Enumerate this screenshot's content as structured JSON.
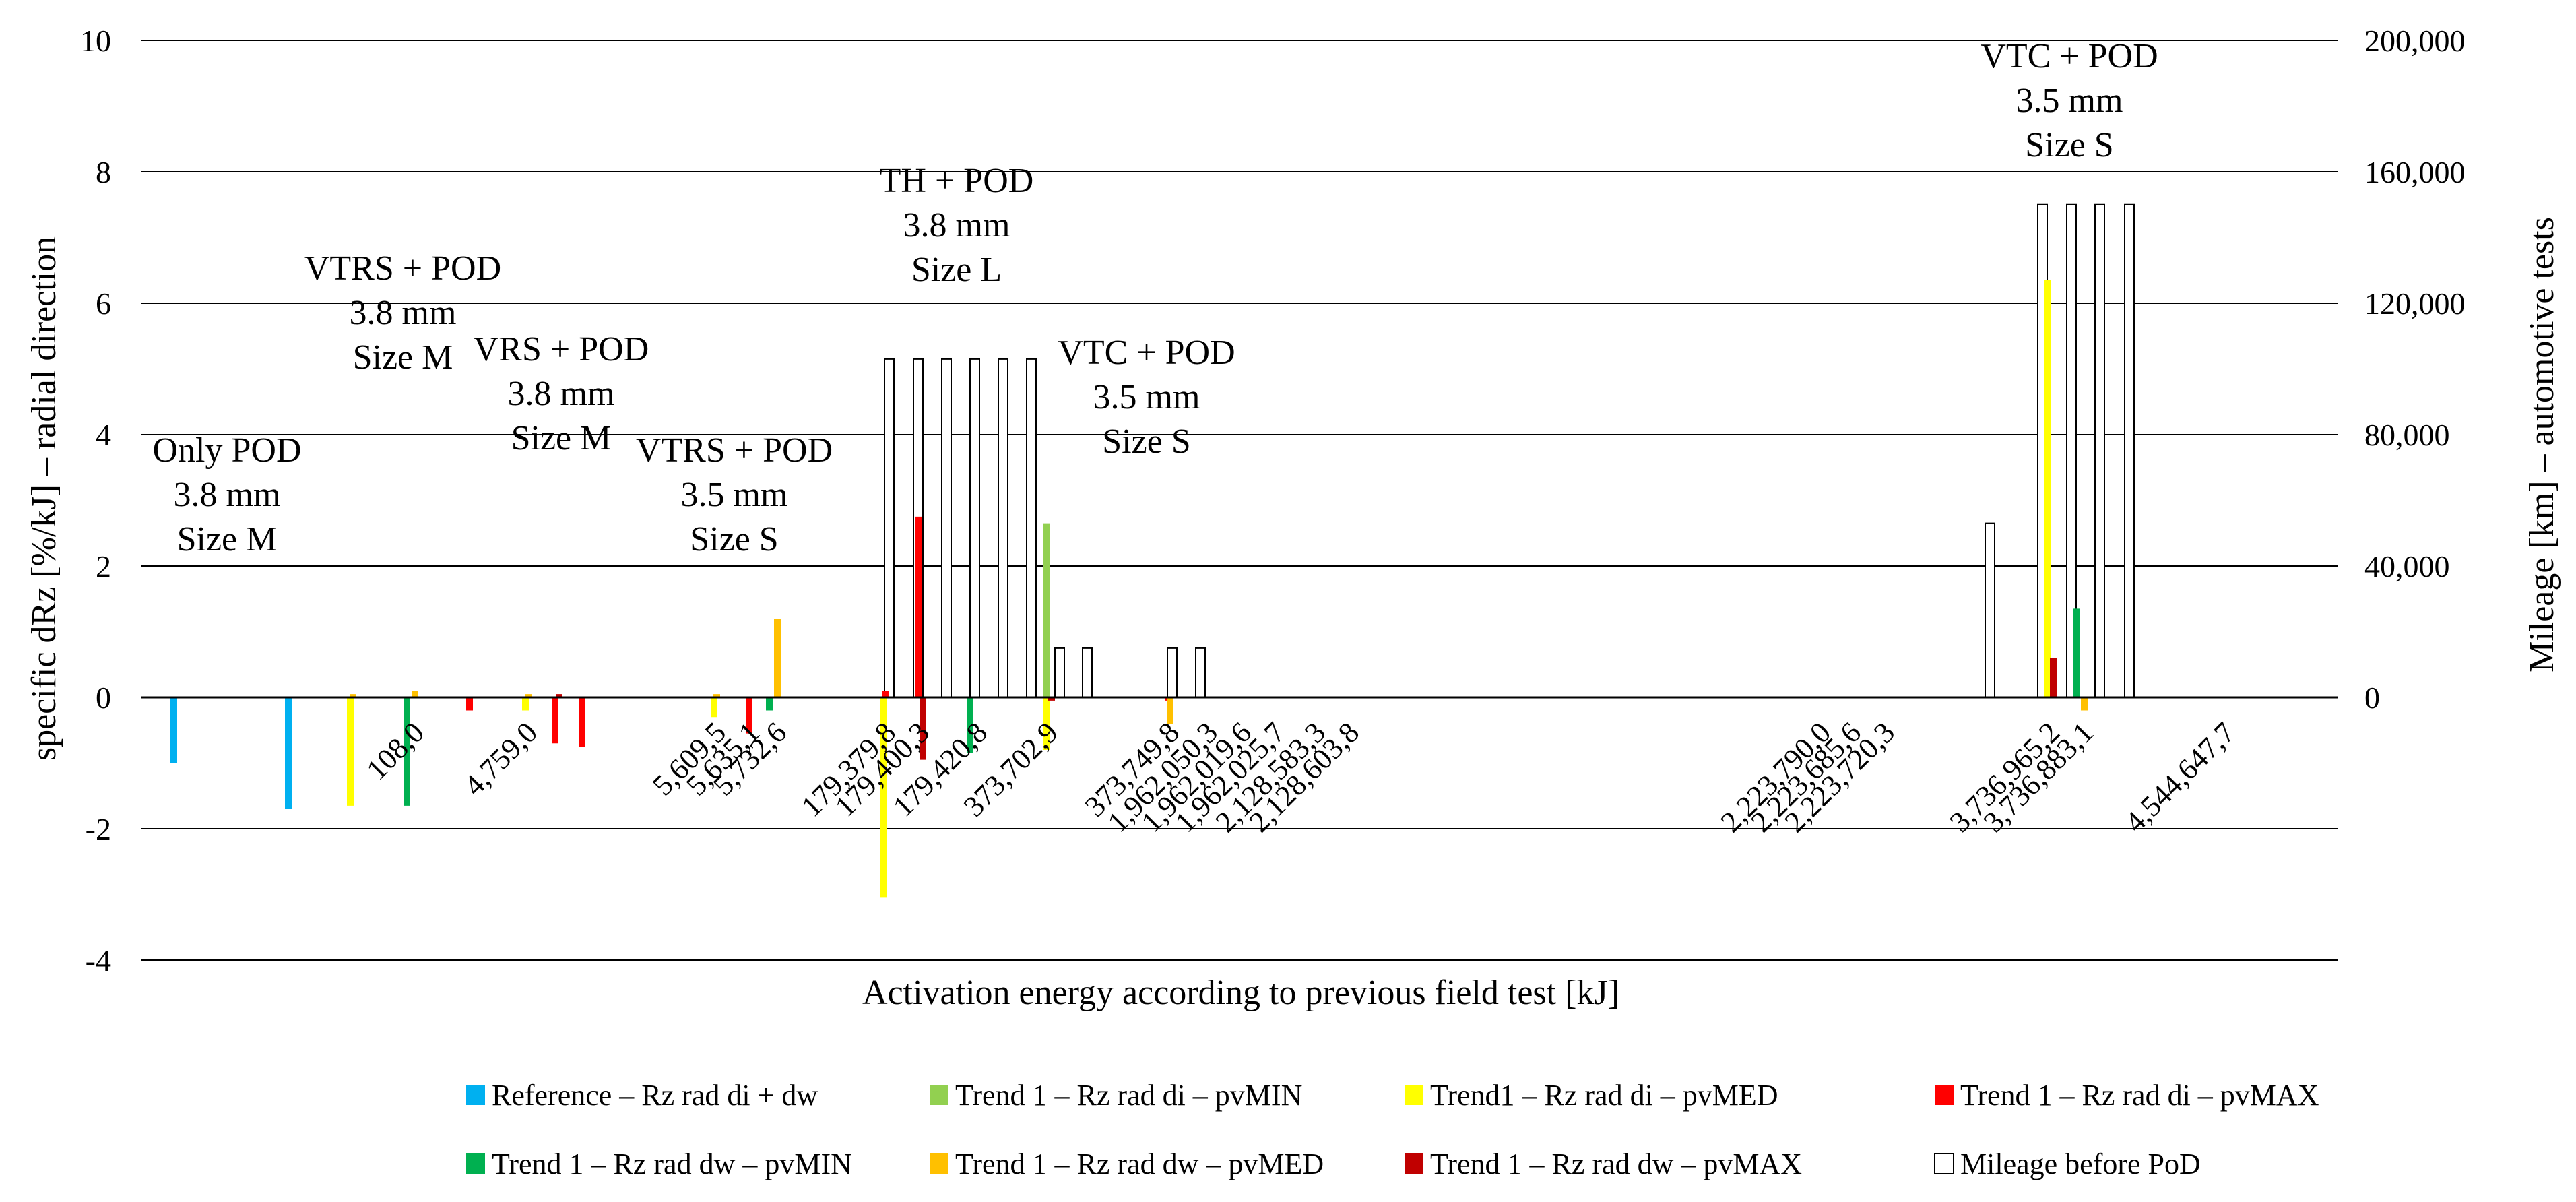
{
  "chart_data": {
    "type": "bar",
    "title": "",
    "xlabel": "Activation energy according to previous field test [kJ]",
    "ylabel": "specific dRz [%/kJ] – radial direction",
    "y2label": "Mileage [km] – automotive tests",
    "ylim": [
      -4,
      10
    ],
    "y2lim": [
      -80000,
      200000
    ],
    "yticks": [
      "-4",
      "-2",
      "0",
      "2",
      "4",
      "6",
      "8",
      "10"
    ],
    "y2ticks": [
      "0",
      "40,000",
      "80,000",
      "120,000",
      "160,000",
      "200,000"
    ],
    "grid": true,
    "legend_position": "bottom",
    "categories": [
      "",
      "",
      "",
      "108,0",
      "",
      "4,759,0",
      "",
      "",
      "5,609,5",
      "5,635,1",
      "5,732,6",
      "179,379,8",
      "179,400,3",
      "179,420,8",
      "373,702,9",
      "373,749,8",
      "1,962,050,3",
      "1,962,019,6",
      "1,962,025,7",
      "2,128,583,3",
      "2,128,603,8",
      "",
      "",
      "2,223,790,0",
      "2,223,685,6",
      "2,223,720,3",
      "",
      "",
      "3,736,965,2",
      "3,736,883,1",
      "",
      "4,544,647,7"
    ],
    "series": [
      {
        "name": "Reference – Rz rad di + dw",
        "color": "#00B0F0",
        "values": [
          -1.0,
          -1.7,
          null,
          null,
          null,
          null,
          null,
          null,
          null,
          null,
          null,
          null,
          null,
          null,
          null,
          null,
          null,
          null,
          null,
          null,
          null,
          null,
          null,
          null,
          null,
          null,
          null,
          null,
          null,
          null,
          null,
          null
        ]
      },
      {
        "name": "Trend 1 – Rz rad di – pvMIN",
        "color": "#92D050",
        "values": [
          null,
          null,
          null,
          null,
          null,
          null,
          null,
          null,
          null,
          null,
          null,
          null,
          null,
          null,
          2.65,
          null,
          null,
          null,
          null,
          null,
          null,
          null,
          null,
          null,
          null,
          null,
          null,
          null,
          null,
          null,
          null,
          null
        ]
      },
      {
        "name": "Trend1 – Rz rad di – pvMED",
        "color": "#FFFF00",
        "values": [
          null,
          null,
          -1.65,
          null,
          null,
          -0.2,
          null,
          null,
          -0.3,
          null,
          null,
          -3.05,
          null,
          null,
          -0.8,
          null,
          null,
          null,
          null,
          null,
          null,
          null,
          null,
          null,
          null,
          null,
          null,
          null,
          6.35,
          null,
          null,
          null
        ]
      },
      {
        "name": "Trend 1 – Rz rad di – pvMAX",
        "color": "#FF0000",
        "values": [
          null,
          null,
          null,
          null,
          -0.2,
          null,
          -0.7,
          -0.75,
          null,
          -0.55,
          null,
          0.1,
          2.75,
          null,
          null,
          -0.05,
          null,
          null,
          null,
          null,
          null,
          null,
          null,
          null,
          null,
          null,
          null,
          null,
          null,
          null,
          null,
          null
        ]
      },
      {
        "name": "Trend 1 – Rz rad dw – pvMIN",
        "color": "#00B050",
        "values": [
          null,
          null,
          null,
          -1.65,
          null,
          null,
          null,
          null,
          null,
          null,
          -0.2,
          null,
          null,
          -0.85,
          null,
          null,
          null,
          null,
          null,
          null,
          null,
          null,
          null,
          null,
          null,
          null,
          null,
          null,
          null,
          1.35,
          null,
          null
        ]
      },
      {
        "name": "Trend 1 – Rz rad dw – pvMED",
        "color": "#FFC000",
        "values": [
          null,
          null,
          0.05,
          0.1,
          null,
          0.05,
          null,
          null,
          0.05,
          null,
          1.2,
          null,
          null,
          null,
          null,
          -0.4,
          null,
          null,
          null,
          null,
          null,
          null,
          null,
          null,
          null,
          null,
          null,
          null,
          null,
          -0.2,
          null,
          null
        ]
      },
      {
        "name": "Trend 1 – Rz rad dw – pvMAX",
        "color": "#C00000",
        "values": [
          null,
          null,
          null,
          null,
          null,
          null,
          0.05,
          null,
          null,
          null,
          null,
          null,
          -0.95,
          null,
          -0.05,
          null,
          null,
          null,
          null,
          null,
          null,
          null,
          null,
          null,
          null,
          null,
          null,
          null,
          0.6,
          null,
          null,
          null
        ]
      },
      {
        "name": "Mileage before PoD",
        "color": "#FFFFFF",
        "axis": "secondary",
        "values": [
          null,
          null,
          null,
          null,
          null,
          null,
          null,
          null,
          null,
          null,
          null,
          103000,
          103000,
          103000,
          103000,
          15000,
          null,
          null,
          null,
          null,
          null,
          null,
          null,
          null,
          null,
          null,
          53000,
          150000,
          150000,
          150000,
          null,
          null
        ]
      }
    ],
    "mileage_bars": [
      {
        "mileage": 103000
      },
      {
        "mileage": 103000
      },
      {
        "mileage": 103000
      },
      {
        "mileage": 103000
      },
      {
        "mileage": 103000
      },
      {
        "mileage": 103000
      },
      {
        "mileage": 15000
      },
      {
        "mileage": 15000
      },
      {
        "mileage": 15000
      },
      {
        "mileage": 15000
      },
      {
        "mileage": 53000
      },
      {
        "mileage": 150000
      },
      {
        "mileage": 150000
      },
      {
        "mileage": 150000
      },
      {
        "mileage": 150000
      }
    ],
    "group_annotations": [
      {
        "lines": [
          "Only POD",
          "3.8 mm",
          "Size M"
        ]
      },
      {
        "lines": [
          "VTRS + POD",
          "3.8 mm",
          "Size M"
        ]
      },
      {
        "lines": [
          "VRS + POD",
          "3.8 mm",
          "Size M"
        ]
      },
      {
        "lines": [
          "VTRS + POD",
          "3.5 mm",
          "Size S"
        ]
      },
      {
        "lines": [
          "TH + POD",
          "3.8 mm",
          "Size L"
        ]
      },
      {
        "lines": [
          "VTC + POD",
          "3.5 mm",
          "Size S"
        ]
      },
      {
        "lines": [
          "VTC + POD",
          "3.5 mm",
          "Size S"
        ]
      }
    ]
  }
}
